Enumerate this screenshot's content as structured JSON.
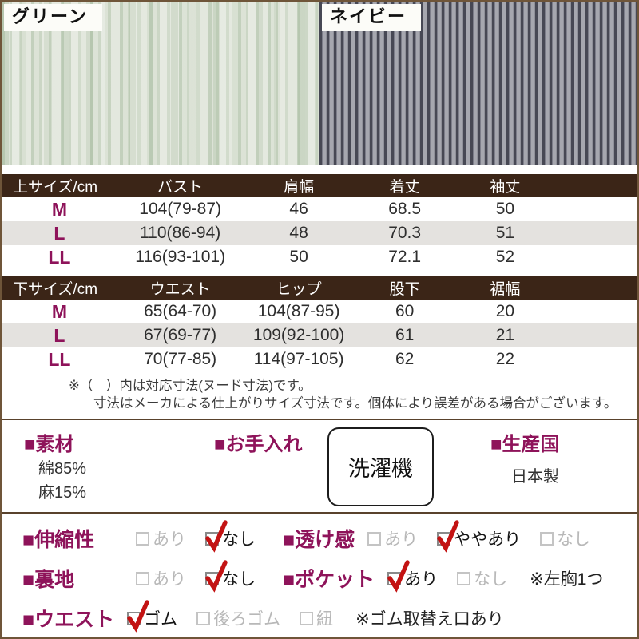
{
  "swatches": [
    {
      "label": "グリーン",
      "base_color": "#dfe5d9",
      "stripe_color": "#a8c19c"
    },
    {
      "label": "ネイビー",
      "base_color": "#a2a3ab",
      "stripe_color": "#474854"
    }
  ],
  "size_tables": [
    {
      "headers": [
        "上サイズ/cm",
        "バスト",
        "肩幅",
        "着丈",
        "袖丈"
      ],
      "rows": [
        {
          "size": "M",
          "values": [
            "104(79-87)",
            "46",
            "68.5",
            "50"
          ]
        },
        {
          "size": "L",
          "values": [
            "110(86-94)",
            "48",
            "70.3",
            "51"
          ]
        },
        {
          "size": "LL",
          "values": [
            "116(93-101)",
            "50",
            "72.1",
            "52"
          ]
        }
      ]
    },
    {
      "headers": [
        "下サイズ/cm",
        "ウエスト",
        "ヒップ",
        "股下",
        "裾幅"
      ],
      "rows": [
        {
          "size": "M",
          "values": [
            "65(64-70)",
            "104(87-95)",
            "60",
            "20"
          ]
        },
        {
          "size": "L",
          "values": [
            "67(69-77)",
            "109(92-100)",
            "61",
            "21"
          ]
        },
        {
          "size": "LL",
          "values": [
            "70(77-85)",
            "114(97-105)",
            "62",
            "22"
          ]
        }
      ]
    }
  ],
  "notes": [
    "※（　）内は対応寸法(ヌード寸法)です。",
    "寸法はメーカによる仕上がりサイズ寸法です。個体により誤差がある場合がございます。"
  ],
  "info": {
    "material": {
      "title": "■素材",
      "lines": [
        "綿85%",
        "麻15%"
      ]
    },
    "care": {
      "title": "■お手入れ",
      "badge": "洗濯機"
    },
    "country": {
      "title": "■生産国",
      "value": "日本製"
    }
  },
  "features": {
    "rows": [
      {
        "items": [
          {
            "t": "head",
            "text": "■伸縮性"
          },
          {
            "t": "opt",
            "text": "あり",
            "checked": false
          },
          {
            "t": "opt",
            "text": "なし",
            "checked": true
          },
          {
            "t": "head",
            "text": "■透け感"
          },
          {
            "t": "opt",
            "text": "あり",
            "checked": false
          },
          {
            "t": "opt",
            "text": "ややあり",
            "checked": true
          },
          {
            "t": "opt",
            "text": "なし",
            "checked": false
          }
        ]
      },
      {
        "items": [
          {
            "t": "head",
            "text": "■裏地"
          },
          {
            "t": "opt",
            "text": "あり",
            "checked": false
          },
          {
            "t": "opt",
            "text": "なし",
            "checked": true
          },
          {
            "t": "head",
            "text": "■ポケット"
          },
          {
            "t": "opt",
            "text": "あり",
            "checked": true
          },
          {
            "t": "opt",
            "text": "なし",
            "checked": false
          },
          {
            "t": "note",
            "text": "※左胸1つ"
          }
        ]
      },
      {
        "items": [
          {
            "t": "head",
            "text": "■ウエスト"
          },
          {
            "t": "opt",
            "text": "ゴム",
            "checked": true
          },
          {
            "t": "opt",
            "text": "後ろゴム",
            "checked": false
          },
          {
            "t": "opt",
            "text": "紐",
            "checked": false
          },
          {
            "t": "note",
            "text": "※ゴム取替え口あり"
          }
        ]
      }
    ]
  },
  "colors": {
    "accent_magenta": "#8e135a",
    "table_header_brown": "#3b2517",
    "row_alt_gray": "#e4e2df",
    "check_red": "#c31313",
    "divider_brown": "#59422c"
  }
}
